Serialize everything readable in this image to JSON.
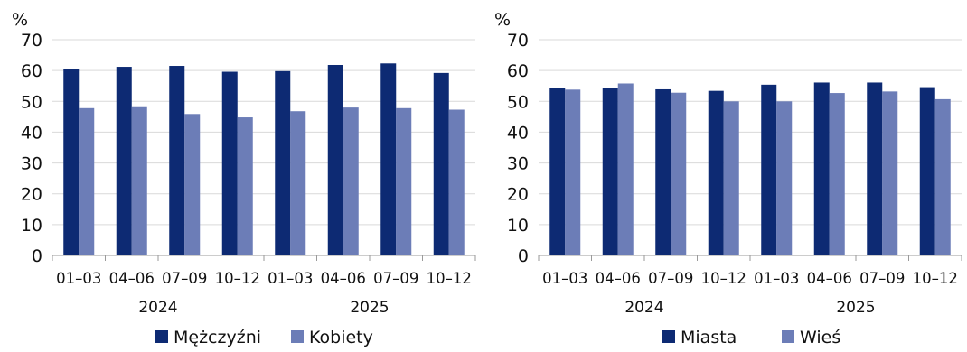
{
  "chart_data": [
    {
      "type": "bar",
      "unit_label": "%",
      "ylim": [
        0,
        70
      ],
      "yticks": [
        0,
        10,
        20,
        30,
        40,
        50,
        60,
        70
      ],
      "grid": true,
      "legend_position": "bottom",
      "categories": [
        "01–03",
        "04–06",
        "07–09",
        "10–12",
        "01–03",
        "04–06",
        "07–09",
        "10–12"
      ],
      "years": [
        "2024",
        "2025"
      ],
      "series": [
        {
          "name": "Mężczyźni",
          "color": "#0d2a73",
          "values": [
            60.6,
            61.2,
            61.5,
            59.6,
            59.8,
            61.8,
            62.3,
            59.2
          ]
        },
        {
          "name": "Kobiety",
          "color": "#6c7db7",
          "values": [
            47.8,
            48.4,
            45.9,
            44.8,
            46.8,
            48.0,
            47.8,
            47.3
          ]
        }
      ]
    },
    {
      "type": "bar",
      "unit_label": "%",
      "ylim": [
        0,
        70
      ],
      "yticks": [
        0,
        10,
        20,
        30,
        40,
        50,
        60,
        70
      ],
      "grid": true,
      "legend_position": "bottom",
      "categories": [
        "01–03",
        "04–06",
        "07–09",
        "10–12",
        "01–03",
        "04–06",
        "07–09",
        "10–12"
      ],
      "years": [
        "2024",
        "2025"
      ],
      "series": [
        {
          "name": "Miasta",
          "color": "#0d2a73",
          "values": [
            54.4,
            54.2,
            53.9,
            53.4,
            55.4,
            56.1,
            56.1,
            54.6
          ]
        },
        {
          "name": "Wieś",
          "color": "#6c7db7",
          "values": [
            53.8,
            55.8,
            52.8,
            50.0,
            50.0,
            52.7,
            53.2,
            50.7
          ]
        }
      ]
    }
  ]
}
